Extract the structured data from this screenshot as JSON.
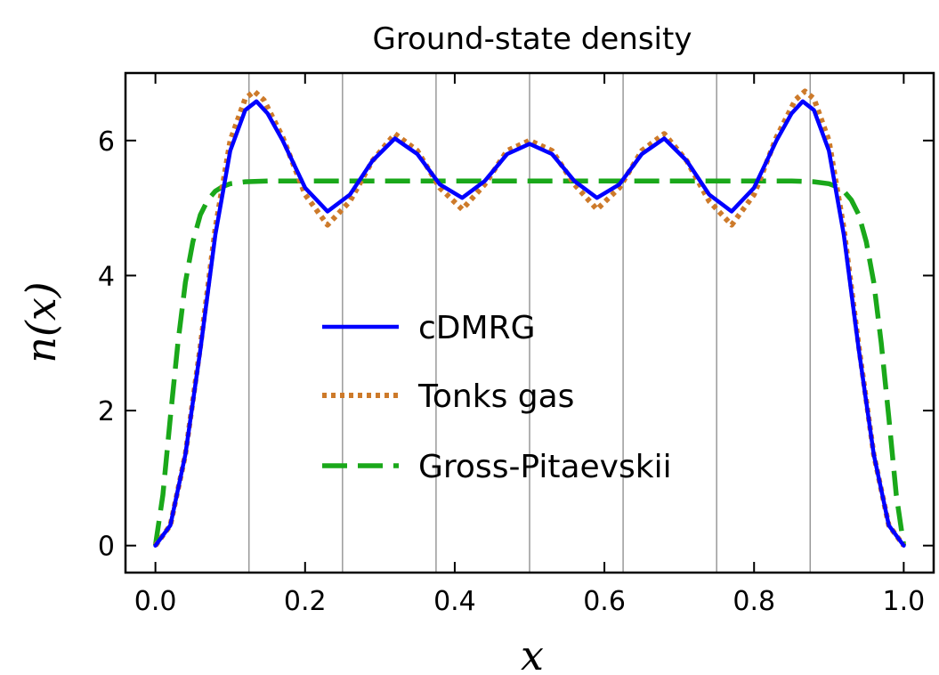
{
  "chart_data": {
    "type": "line",
    "title": "Ground-state density",
    "xlabel": "x",
    "ylabel": "n(x)",
    "xlim": [
      -0.04,
      1.04
    ],
    "ylim": [
      -0.4,
      7.0
    ],
    "xticks": [
      0.0,
      0.2,
      0.4,
      0.6,
      0.8,
      1.0
    ],
    "xtick_labels": [
      "0.0",
      "0.2",
      "0.4",
      "0.6",
      "0.8",
      "1.0"
    ],
    "yticks": [
      0,
      2,
      4,
      6
    ],
    "ytick_labels": [
      "0",
      "2",
      "4",
      "6"
    ],
    "vertical_gridlines_x": [
      0.125,
      0.25,
      0.375,
      0.5,
      0.625,
      0.75,
      0.875
    ],
    "legend_position": "center",
    "series": [
      {
        "name": "cDMRG",
        "color": "#0000ff",
        "style": "solid",
        "x": [
          0.0,
          0.02,
          0.04,
          0.06,
          0.08,
          0.1,
          0.12,
          0.135,
          0.15,
          0.17,
          0.2,
          0.23,
          0.26,
          0.29,
          0.32,
          0.35,
          0.38,
          0.41,
          0.44,
          0.47,
          0.5,
          0.53,
          0.56,
          0.59,
          0.62,
          0.65,
          0.68,
          0.71,
          0.74,
          0.77,
          0.8,
          0.83,
          0.85,
          0.865,
          0.88,
          0.9,
          0.92,
          0.94,
          0.96,
          0.98,
          1.0
        ],
        "y": [
          0.0,
          0.3,
          1.35,
          2.9,
          4.6,
          5.85,
          6.45,
          6.58,
          6.4,
          6.0,
          5.3,
          4.95,
          5.2,
          5.7,
          6.03,
          5.8,
          5.35,
          5.15,
          5.4,
          5.8,
          5.95,
          5.8,
          5.4,
          5.15,
          5.35,
          5.8,
          6.03,
          5.7,
          5.2,
          4.95,
          5.3,
          6.0,
          6.4,
          6.58,
          6.45,
          5.85,
          4.6,
          2.9,
          1.35,
          0.3,
          0.0
        ]
      },
      {
        "name": "Tonks gas",
        "color": "#cd7a2a",
        "style": "dotted",
        "x": [
          0.0,
          0.02,
          0.04,
          0.06,
          0.08,
          0.1,
          0.12,
          0.132,
          0.145,
          0.17,
          0.2,
          0.23,
          0.26,
          0.29,
          0.32,
          0.35,
          0.38,
          0.41,
          0.44,
          0.47,
          0.5,
          0.53,
          0.56,
          0.59,
          0.62,
          0.65,
          0.68,
          0.71,
          0.74,
          0.77,
          0.8,
          0.83,
          0.855,
          0.868,
          0.88,
          0.9,
          0.92,
          0.94,
          0.96,
          0.98,
          1.0
        ],
        "y": [
          0.0,
          0.3,
          1.35,
          2.95,
          4.7,
          6.0,
          6.62,
          6.73,
          6.6,
          6.05,
          5.2,
          4.75,
          5.1,
          5.7,
          6.1,
          5.85,
          5.3,
          4.98,
          5.35,
          5.85,
          6.0,
          5.85,
          5.35,
          4.98,
          5.3,
          5.85,
          6.1,
          5.7,
          5.1,
          4.75,
          5.2,
          6.05,
          6.6,
          6.73,
          6.62,
          6.0,
          4.7,
          2.95,
          1.35,
          0.3,
          0.0
        ]
      },
      {
        "name": "Gross-Pitaevskii",
        "color": "#1aa81a",
        "style": "dashed",
        "x": [
          0.0,
          0.01,
          0.02,
          0.03,
          0.04,
          0.05,
          0.06,
          0.07,
          0.08,
          0.09,
          0.1,
          0.12,
          0.15,
          0.2,
          0.5,
          0.8,
          0.85,
          0.88,
          0.9,
          0.91,
          0.92,
          0.93,
          0.94,
          0.95,
          0.96,
          0.97,
          0.98,
          0.99,
          1.0
        ],
        "y": [
          0.0,
          0.75,
          1.9,
          3.0,
          3.9,
          4.5,
          4.9,
          5.12,
          5.25,
          5.32,
          5.36,
          5.39,
          5.4,
          5.4,
          5.4,
          5.4,
          5.4,
          5.39,
          5.36,
          5.32,
          5.25,
          5.12,
          4.9,
          4.5,
          3.9,
          3.0,
          1.9,
          0.75,
          0.0
        ]
      }
    ]
  }
}
